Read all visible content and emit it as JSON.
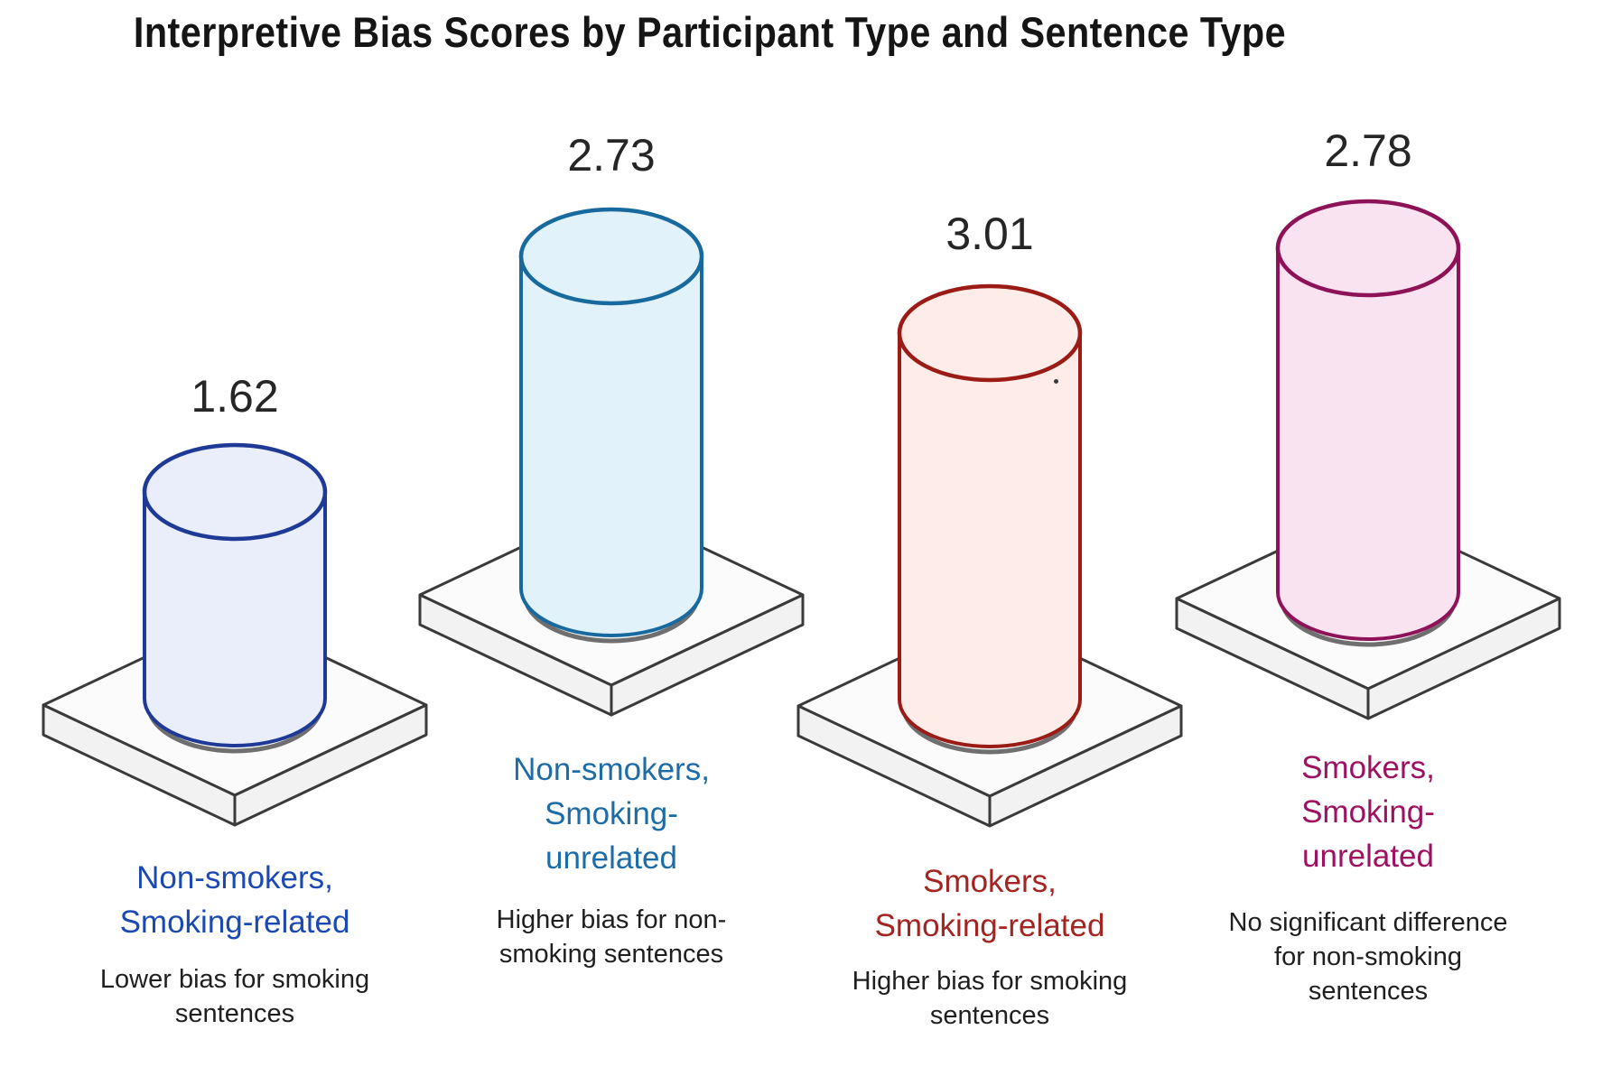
{
  "title": "Interpretive Bias Scores by Participant Type and Sentence Type",
  "chart_data": {
    "type": "bar",
    "subtype": "3d-cylinder-pictogram",
    "title": "Interpretive Bias Scores by Participant Type and Sentence Type",
    "xlabel": "",
    "ylabel": "",
    "axes_shown": false,
    "grid": false,
    "legend": "none",
    "value_range_implied": [
      0,
      3.01
    ],
    "categories": [
      "Non-smokers, Smoking-related",
      "Non-smokers, Smoking-unrelated",
      "Smokers, Smoking-related",
      "Smokers, Smoking-unrelated"
    ],
    "values": [
      1.62,
      2.73,
      3.01,
      2.78
    ],
    "bars": [
      {
        "participant_type": "Non-smokers",
        "sentence_type": "Smoking-related",
        "value": 1.62,
        "label_lines": [
          "Non-smokers,",
          "Smoking-related"
        ],
        "caption_lines": [
          "Lower bias for smoking",
          "sentences"
        ],
        "stroke_color": "#1e3a96",
        "fill_color": "#e9eefa",
        "label_color": "#1b49b4"
      },
      {
        "participant_type": "Non-smokers",
        "sentence_type": "Smoking-unrelated",
        "value": 2.73,
        "label_lines": [
          "Non-smokers,",
          "Smoking-",
          "unrelated"
        ],
        "caption_lines": [
          "Higher bias for non-",
          "smoking sentences"
        ],
        "stroke_color": "#17699e",
        "fill_color": "#e2f2fb",
        "label_color": "#1d6ca8"
      },
      {
        "participant_type": "Smokers",
        "sentence_type": "Smoking-related",
        "value": 3.01,
        "label_lines": [
          "Smokers,",
          "Smoking-related"
        ],
        "caption_lines": [
          "Higher bias for smoking",
          "sentences"
        ],
        "stroke_color": "#9b1b16",
        "fill_color": "#fdece7",
        "label_color": "#a32420"
      },
      {
        "participant_type": "Smokers",
        "sentence_type": "Smoking-unrelated",
        "value": 2.78,
        "label_lines": [
          "Smokers,",
          "Smoking-",
          "unrelated"
        ],
        "caption_lines": [
          "No significant difference",
          "for non-smoking",
          "sentences"
        ],
        "stroke_color": "#8e1257",
        "fill_color": "#fae3f1",
        "label_color": "#9d1260"
      }
    ],
    "platform_colors": {
      "top": "#fbfbfb",
      "side": "#f2f2f2",
      "outline": "#3a3a3a"
    },
    "shadow_color": "#6f6f6f",
    "text_color": "#1f1f1f"
  }
}
